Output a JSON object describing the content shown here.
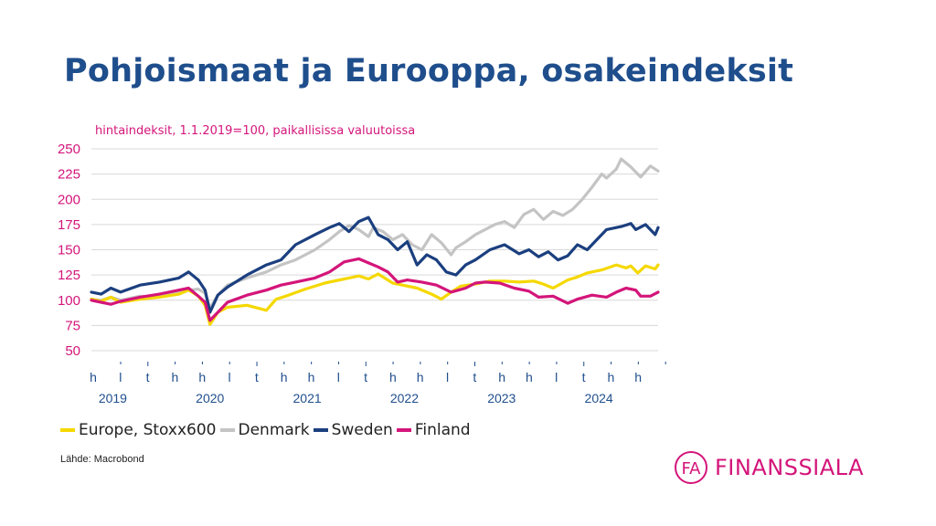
{
  "title": "Pohjoismaat ja Eurooppa, osakeindeksit",
  "chart_data": {
    "type": "line",
    "subtitle": "hintaindeksit, 1.1.2019=100, paikallisissa valuutoissa",
    "ylim": [
      50,
      250
    ],
    "yticks": [
      50,
      75,
      100,
      125,
      150,
      175,
      200,
      225,
      250
    ],
    "xlim": [
      2019.0,
      2024.83
    ],
    "quarter_labels": [
      "h",
      "l",
      "t",
      "h",
      "h",
      "l",
      "t",
      "h",
      "h",
      "l",
      "t",
      "h",
      "h",
      "l",
      "t",
      "h",
      "h",
      "l",
      "t",
      "h",
      "h"
    ],
    "year_labels": [
      "2019",
      "2020",
      "2021",
      "2022",
      "2023",
      "2024"
    ],
    "grid": true,
    "source": "Lähde: Macrobond",
    "series": [
      {
        "name": "Denmark",
        "color": "#c4c4c4",
        "x": [
          2019.0,
          2019.1,
          2019.2,
          2019.3,
          2019.5,
          2019.7,
          2019.85,
          2020.0,
          2020.1,
          2020.17,
          2020.22,
          2020.3,
          2020.4,
          2020.6,
          2020.8,
          2020.95,
          2021.1,
          2021.3,
          2021.45,
          2021.55,
          2021.65,
          2021.75,
          2021.85,
          2021.9,
          2022.0,
          2022.1,
          2022.2,
          2022.3,
          2022.4,
          2022.5,
          2022.6,
          2022.7,
          2022.75,
          2022.85,
          2022.95,
          2023.05,
          2023.15,
          2023.25,
          2023.35,
          2023.45,
          2023.55,
          2023.65,
          2023.75,
          2023.85,
          2023.95,
          2024.05,
          2024.15,
          2024.25,
          2024.3,
          2024.4,
          2024.45,
          2024.55,
          2024.65,
          2024.75,
          2024.83
        ],
        "values": [
          101,
          100,
          103,
          100,
          104,
          103,
          108,
          110,
          111,
          107,
          92,
          105,
          115,
          122,
          128,
          135,
          140,
          150,
          160,
          168,
          174,
          170,
          163,
          172,
          168,
          160,
          165,
          155,
          150,
          165,
          157,
          145,
          152,
          158,
          165,
          170,
          175,
          178,
          172,
          185,
          190,
          180,
          188,
          184,
          190,
          200,
          212,
          225,
          221,
          230,
          240,
          232,
          222,
          233,
          228
        ]
      },
      {
        "name": "Sweden",
        "color": "#1b3f7f",
        "x": [
          2019.0,
          2019.1,
          2019.2,
          2019.3,
          2019.5,
          2019.7,
          2019.9,
          2020.0,
          2020.1,
          2020.17,
          2020.22,
          2020.3,
          2020.4,
          2020.6,
          2020.8,
          2020.95,
          2021.1,
          2021.3,
          2021.45,
          2021.55,
          2021.65,
          2021.75,
          2021.85,
          2021.95,
          2022.05,
          2022.15,
          2022.25,
          2022.35,
          2022.45,
          2022.55,
          2022.65,
          2022.75,
          2022.85,
          2022.95,
          2023.1,
          2023.25,
          2023.4,
          2023.5,
          2023.6,
          2023.7,
          2023.8,
          2023.9,
          2024.0,
          2024.1,
          2024.2,
          2024.3,
          2024.45,
          2024.55,
          2024.6,
          2024.7,
          2024.8,
          2024.83
        ],
        "values": [
          108,
          106,
          112,
          108,
          115,
          118,
          122,
          128,
          120,
          110,
          88,
          105,
          113,
          125,
          135,
          140,
          155,
          165,
          172,
          176,
          168,
          178,
          182,
          165,
          160,
          150,
          158,
          135,
          145,
          140,
          128,
          125,
          135,
          140,
          150,
          155,
          146,
          150,
          143,
          148,
          140,
          144,
          155,
          150,
          160,
          170,
          173,
          176,
          170,
          175,
          165,
          172
        ]
      },
      {
        "name": "Europe, Stoxx600",
        "color": "#f5d800",
        "x": [
          2019.0,
          2019.1,
          2019.2,
          2019.3,
          2019.5,
          2019.7,
          2019.9,
          2020.0,
          2020.1,
          2020.17,
          2020.22,
          2020.3,
          2020.4,
          2020.6,
          2020.8,
          2020.9,
          2021.0,
          2021.2,
          2021.4,
          2021.6,
          2021.75,
          2021.85,
          2021.95,
          2022.1,
          2022.2,
          2022.35,
          2022.5,
          2022.6,
          2022.7,
          2022.8,
          2022.95,
          2023.1,
          2023.25,
          2023.4,
          2023.55,
          2023.65,
          2023.75,
          2023.9,
          2024.0,
          2024.1,
          2024.25,
          2024.4,
          2024.5,
          2024.55,
          2024.62,
          2024.7,
          2024.8,
          2024.83
        ],
        "values": [
          101,
          99,
          103,
          98,
          101,
          103,
          106,
          110,
          104,
          95,
          76,
          88,
          93,
          95,
          90,
          101,
          104,
          111,
          117,
          121,
          124,
          121,
          126,
          117,
          115,
          112,
          106,
          101,
          108,
          114,
          116,
          119,
          119,
          118,
          119,
          116,
          112,
          120,
          123,
          127,
          130,
          135,
          132,
          134,
          127,
          134,
          131,
          135
        ]
      },
      {
        "name": "Finland",
        "color": "#d4157a",
        "x": [
          2019.0,
          2019.1,
          2019.2,
          2019.3,
          2019.5,
          2019.7,
          2019.9,
          2020.0,
          2020.1,
          2020.17,
          2020.22,
          2020.3,
          2020.4,
          2020.6,
          2020.8,
          2020.95,
          2021.1,
          2021.3,
          2021.45,
          2021.6,
          2021.75,
          2021.85,
          2021.95,
          2022.05,
          2022.15,
          2022.25,
          2022.4,
          2022.55,
          2022.7,
          2022.85,
          2022.95,
          2023.05,
          2023.2,
          2023.35,
          2023.5,
          2023.6,
          2023.75,
          2023.9,
          2024.0,
          2024.15,
          2024.3,
          2024.4,
          2024.5,
          2024.6,
          2024.65,
          2024.75,
          2024.83
        ],
        "values": [
          100,
          98,
          96,
          99,
          103,
          106,
          110,
          112,
          104,
          98,
          80,
          88,
          98,
          105,
          110,
          115,
          118,
          122,
          128,
          138,
          141,
          137,
          133,
          128,
          118,
          120,
          118,
          115,
          108,
          112,
          117,
          118,
          117,
          112,
          109,
          103,
          104,
          97,
          101,
          105,
          103,
          108,
          112,
          110,
          104,
          104,
          108
        ]
      }
    ]
  },
  "legend": [
    "Europe, Stoxx600",
    "Denmark",
    "Sweden",
    "Finland"
  ],
  "logo": {
    "mark": "FA",
    "name": "FINANSSIALA"
  }
}
